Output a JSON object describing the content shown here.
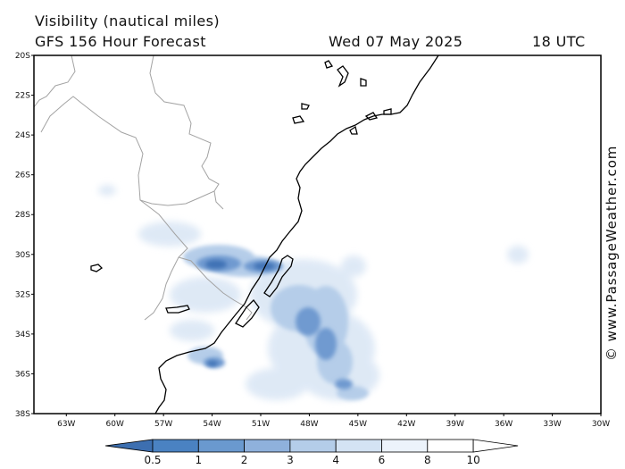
{
  "header": {
    "title": "Visibility (nautical miles)",
    "subtitle": "GFS 156 Hour Forecast",
    "date": "Wed 07 May 2025",
    "time": "18 UTC"
  },
  "credit": "© www.PassageWeather.com",
  "map": {
    "lat_range": [
      "20S",
      "38S"
    ],
    "lon_range": [
      "65W",
      "30W"
    ],
    "lat_ticks": [
      "20S",
      "22S",
      "24S",
      "26S",
      "28S",
      "30S",
      "32S",
      "34S",
      "36S",
      "38S"
    ],
    "lon_ticks": [
      "63W",
      "60W",
      "57W",
      "54W",
      "51W",
      "48W",
      "45W",
      "42W",
      "39W",
      "36W",
      "33W",
      "30W"
    ]
  },
  "legend": {
    "labels": [
      "0.5",
      "1",
      "2",
      "3",
      "4",
      "6",
      "8",
      "10"
    ],
    "colors": [
      "#3d6fb0",
      "#4a82c2",
      "#6a99cf",
      "#8fb1dc",
      "#b4cde9",
      "#d4e3f4",
      "#ecf3fb",
      "#ffffff"
    ]
  }
}
